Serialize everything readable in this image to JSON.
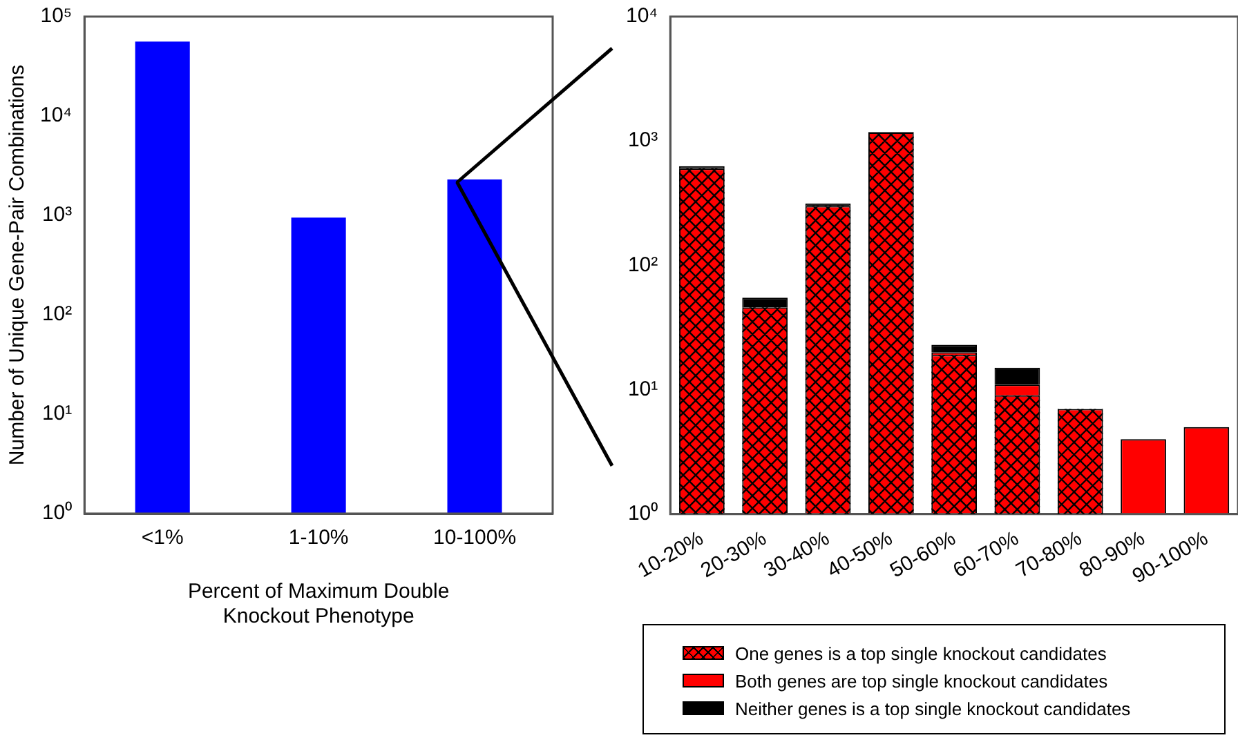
{
  "chart_data": [
    {
      "type": "bar",
      "xlabel": "Percent of Maximum Double\nKnockout Phenotype",
      "ylabel": "Number of Unique Gene-Pair Combinations",
      "categories": [
        "<1%",
        "1-10%",
        "10-100%"
      ],
      "values": [
        56000,
        950,
        2300
      ],
      "color": "#0000ff",
      "log": true,
      "ylim": [
        1,
        100000
      ],
      "yticks": [
        {
          "value": 1,
          "label": "10⁰"
        },
        {
          "value": 10,
          "label": "10¹"
        },
        {
          "value": 100,
          "label": "10²"
        },
        {
          "value": 1000,
          "label": "10³"
        },
        {
          "value": 10000,
          "label": "10⁴"
        },
        {
          "value": 100000,
          "label": "10⁵"
        }
      ],
      "grid": false
    },
    {
      "type": "bar",
      "categories": [
        "10-20%",
        "20-30%",
        "30-40%",
        "40-50%",
        "50-60%",
        "60-70%",
        "70-80%",
        "80-90%",
        "90-100%"
      ],
      "stacked": true,
      "log": true,
      "ylim": [
        1,
        10000
      ],
      "yticks": [
        {
          "value": 1,
          "label": "10⁰"
        },
        {
          "value": 10,
          "label": "10¹"
        },
        {
          "value": 100,
          "label": "10²"
        },
        {
          "value": 1000,
          "label": "10³"
        },
        {
          "value": 10000,
          "label": "10⁴"
        }
      ],
      "grid": false,
      "legend": "bottom",
      "series": [
        {
          "name": "One genes is a top single knockout candidates",
          "color": "#ff0000",
          "values": [
            600,
            46,
            300,
            1170,
            19,
            9,
            7,
            null,
            null
          ]
        },
        {
          "name": "Both genes are top single knockout candidates",
          "color": "#ff0000",
          "values": [
            null,
            null,
            null,
            null,
            1,
            2,
            null,
            4,
            5
          ]
        },
        {
          "name": "Neither genes is a top single knockout candidates",
          "color": "#000000",
          "values": [
            27,
            9,
            14,
            10,
            3,
            4,
            null,
            null,
            null
          ]
        }
      ]
    }
  ]
}
